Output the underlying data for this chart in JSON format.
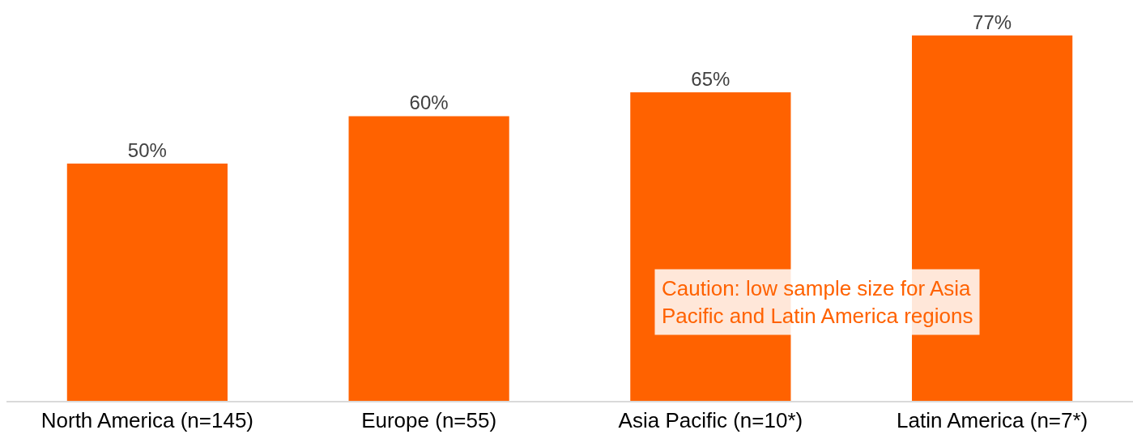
{
  "chart_data": {
    "type": "bar",
    "categories": [
      "North America (n=145)",
      "Europe (n=55)",
      "Asia Pacific (n=10*)",
      "Latin America (n=7*)"
    ],
    "values": [
      50,
      60,
      65,
      77
    ],
    "value_labels": [
      "50%",
      "60%",
      "65%",
      "77%"
    ],
    "color": "#ff6200",
    "tick_labels": "x",
    "grid": false,
    "legend": false,
    "annotations": [
      "Caution: low sample size for Asia Pacific and Latin America regions"
    ]
  }
}
